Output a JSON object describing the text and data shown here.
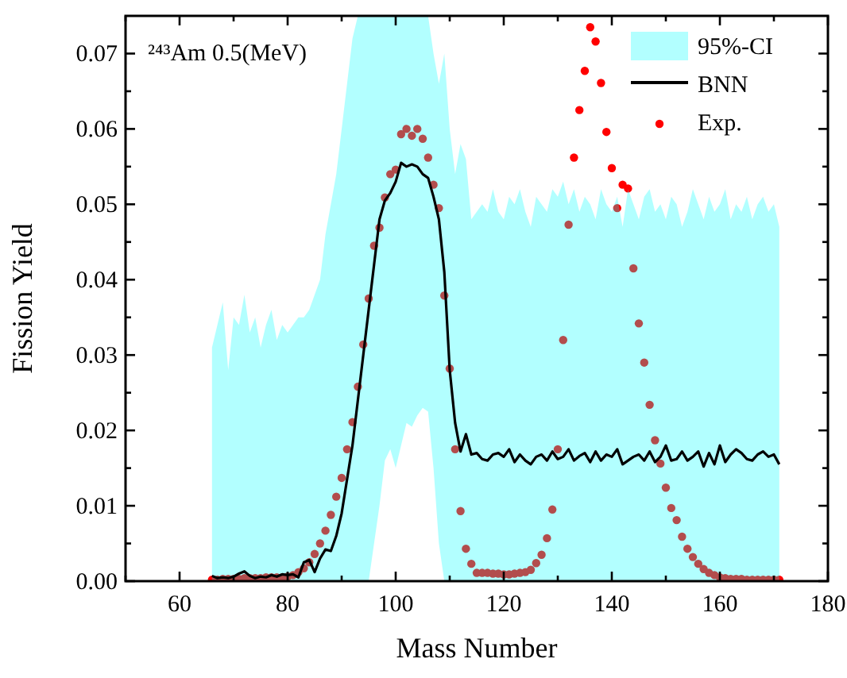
{
  "chart_data": {
    "type": "line",
    "title": "²⁴³Am 0.5(MeV)",
    "xlabel": "Mass Number",
    "ylabel": "Fission Yield",
    "annotations": [
      "95%-CI"
    ],
    "xlim": [
      50,
      180
    ],
    "xticks": [
      {
        "value": 50,
        "label": null
      },
      {
        "value": 60,
        "label": "60"
      },
      {
        "value": 70,
        "label": null
      },
      {
        "value": 80,
        "label": "80"
      },
      {
        "value": 90,
        "label": null
      },
      {
        "value": 100,
        "label": "100"
      },
      {
        "value": 110,
        "label": null
      },
      {
        "value": 120,
        "label": "120"
      },
      {
        "value": 130,
        "label": null
      },
      {
        "value": 140,
        "label": "140"
      },
      {
        "value": 150,
        "label": null
      },
      {
        "value": 160,
        "label": "160"
      },
      {
        "value": 170,
        "label": null
      },
      {
        "value": 180,
        "label": "180"
      }
    ],
    "ylim": [
      0,
      0.075
    ],
    "yticks": [
      {
        "value": 0,
        "label": "0.00"
      },
      {
        "value": 0.005,
        "label": null
      },
      {
        "value": 0.01,
        "label": "0.01"
      },
      {
        "value": 0.015,
        "label": null
      },
      {
        "value": 0.02,
        "label": "0.02"
      },
      {
        "value": 0.025,
        "label": null
      },
      {
        "value": 0.03,
        "label": "0.03"
      },
      {
        "value": 0.035,
        "label": null
      },
      {
        "value": 0.04,
        "label": "0.04"
      },
      {
        "value": 0.045,
        "label": null
      },
      {
        "value": 0.05,
        "label": "0.05"
      },
      {
        "value": 0.055,
        "label": null
      },
      {
        "value": 0.06,
        "label": "0.06"
      },
      {
        "value": 0.065,
        "label": null
      },
      {
        "value": 0.07,
        "label": "0.07"
      }
    ],
    "legend": "top right",
    "grid": false,
    "series": [
      {
        "name": "BNN",
        "color": "#000000",
        "marker": "none",
        "line_style": "solid",
        "x": [
          66,
          67,
          68,
          69,
          70,
          71,
          72,
          73,
          74,
          75,
          76,
          77,
          78,
          79,
          80,
          81,
          82,
          83,
          84,
          85,
          86,
          87,
          88,
          89,
          90,
          91,
          92,
          93,
          94,
          95,
          96,
          97,
          98,
          99,
          100,
          101,
          102,
          103,
          104,
          105,
          106,
          107,
          108,
          109,
          110,
          111,
          112,
          113,
          114,
          115,
          116,
          117,
          118,
          119,
          120,
          121,
          122,
          123,
          124,
          125,
          126,
          127,
          128,
          129,
          130,
          131,
          132,
          133,
          134,
          135,
          136,
          137,
          138,
          139,
          140,
          141,
          142,
          143,
          144,
          145,
          146,
          147,
          148,
          149,
          150,
          151,
          152,
          153,
          154,
          155,
          156,
          157,
          158,
          159,
          160,
          161,
          162,
          163,
          164,
          165,
          166,
          167,
          168,
          169,
          170,
          171
        ],
        "values": [
          0.0007,
          0.0004,
          0.0005,
          0.0004,
          0.0006,
          0.001,
          0.0013,
          0.0007,
          0.0004,
          0.0006,
          0.0005,
          0.0008,
          0.0006,
          0.0009,
          0.0008,
          0.0009,
          0.0005,
          0.0025,
          0.0028,
          0.0012,
          0.003,
          0.0042,
          0.004,
          0.006,
          0.009,
          0.0135,
          0.018,
          0.024,
          0.03,
          0.036,
          0.042,
          0.048,
          0.0505,
          0.0515,
          0.053,
          0.0555,
          0.055,
          0.0553,
          0.055,
          0.054,
          0.0535,
          0.051,
          0.048,
          0.041,
          0.028,
          0.021,
          0.0172,
          0.0195,
          0.0168,
          0.017,
          0.0162,
          0.016,
          0.0168,
          0.017,
          0.0165,
          0.0175,
          0.0158,
          0.0168,
          0.016,
          0.0155,
          0.0165,
          0.0168,
          0.016,
          0.0172,
          0.0162,
          0.0165,
          0.0175,
          0.016,
          0.0166,
          0.017,
          0.0158,
          0.0172,
          0.016,
          0.0168,
          0.0165,
          0.0175,
          0.0155,
          0.016,
          0.0165,
          0.0168,
          0.016,
          0.0172,
          0.0158,
          0.0165,
          0.018,
          0.016,
          0.0162,
          0.0172,
          0.016,
          0.0165,
          0.0172,
          0.0152,
          0.017,
          0.0155,
          0.018,
          0.0158,
          0.0168,
          0.0175,
          0.017,
          0.0162,
          0.016,
          0.0168,
          0.0172,
          0.0165,
          0.0168,
          0.0155
        ],
        "lower": [
          0,
          0,
          0,
          0,
          0,
          0,
          0,
          0,
          0,
          0,
          0,
          0,
          0,
          0,
          0,
          0,
          0,
          0,
          0,
          0,
          0,
          0,
          0,
          0,
          0,
          0,
          0,
          0,
          0,
          0,
          0.005,
          0.01,
          0.016,
          0.0175,
          0.015,
          0.018,
          0.021,
          0.0205,
          0.022,
          0.023,
          0.0225,
          0.015,
          0.005,
          0,
          0,
          0,
          0,
          0,
          0,
          0,
          0,
          0,
          0,
          0,
          0,
          0,
          0,
          0,
          0,
          0,
          0,
          0,
          0,
          0,
          0,
          0,
          0,
          0,
          0,
          0,
          0,
          0,
          0,
          0,
          0,
          0,
          0,
          0,
          0,
          0,
          0,
          0,
          0,
          0,
          0,
          0,
          0,
          0,
          0,
          0,
          0,
          0,
          0,
          0,
          0,
          0,
          0,
          0,
          0,
          0,
          0,
          0,
          0,
          0,
          0,
          0
        ],
        "upper": [
          0.031,
          0.034,
          0.037,
          0.028,
          0.035,
          0.034,
          0.038,
          0.033,
          0.035,
          0.031,
          0.034,
          0.036,
          0.032,
          0.034,
          0.033,
          0.034,
          0.035,
          0.035,
          0.036,
          0.038,
          0.04,
          0.046,
          0.05,
          0.054,
          0.06,
          0.066,
          0.072,
          0.075,
          0.075,
          0.075,
          0.075,
          0.075,
          0.075,
          0.075,
          0.075,
          0.075,
          0.075,
          0.075,
          0.075,
          0.075,
          0.075,
          0.07,
          0.066,
          0.07,
          0.06,
          0.054,
          0.058,
          0.056,
          0.048,
          0.049,
          0.05,
          0.049,
          0.052,
          0.049,
          0.048,
          0.051,
          0.05,
          0.052,
          0.049,
          0.047,
          0.051,
          0.05,
          0.049,
          0.052,
          0.051,
          0.053,
          0.05,
          0.052,
          0.049,
          0.051,
          0.05,
          0.048,
          0.052,
          0.05,
          0.049,
          0.051,
          0.047,
          0.052,
          0.05,
          0.048,
          0.051,
          0.052,
          0.049,
          0.05,
          0.048,
          0.051,
          0.05,
          0.047,
          0.049,
          0.052,
          0.05,
          0.048,
          0.051,
          0.049,
          0.05,
          0.052,
          0.048,
          0.05,
          0.049,
          0.051,
          0.048,
          0.05,
          0.051,
          0.049,
          0.05,
          0.047
        ]
      },
      {
        "name": "Exp.",
        "type": "scatter",
        "color": "#ff0000",
        "marker": "circle",
        "x": [
          66,
          67,
          68,
          69,
          70,
          71,
          72,
          73,
          74,
          75,
          76,
          77,
          78,
          79,
          80,
          81,
          82,
          83,
          84,
          85,
          86,
          87,
          88,
          89,
          90,
          91,
          92,
          93,
          94,
          95,
          96,
          97,
          98,
          99,
          100,
          101,
          102,
          103,
          104,
          105,
          106,
          107,
          108,
          109,
          110,
          111,
          112,
          113,
          114,
          115,
          116,
          117,
          118,
          119,
          120,
          121,
          122,
          123,
          124,
          125,
          126,
          127,
          128,
          129,
          130,
          131,
          132,
          133,
          134,
          135,
          136,
          137,
          138,
          139,
          140,
          141,
          142,
          143,
          144,
          145,
          146,
          147,
          148,
          149,
          150,
          151,
          152,
          153,
          154,
          155,
          156,
          157,
          158,
          159,
          160,
          161,
          162,
          163,
          164,
          165,
          166,
          167,
          168,
          169,
          170,
          171
        ],
        "values": [
          0.0002,
          0.0002,
          0.0003,
          0.0003,
          0.0003,
          0.0003,
          0.0004,
          0.0004,
          0.0004,
          0.0004,
          0.0005,
          0.0005,
          0.0005,
          0.0005,
          0.0006,
          0.0008,
          0.0012,
          0.0017,
          0.0025,
          0.0036,
          0.005,
          0.0067,
          0.0088,
          0.0112,
          0.0137,
          0.0175,
          0.0211,
          0.0258,
          0.0314,
          0.0375,
          0.0445,
          0.0469,
          0.0509,
          0.054,
          0.0546,
          0.0593,
          0.06,
          0.0591,
          0.06,
          0.0587,
          0.0562,
          0.0526,
          0.0495,
          0.0379,
          0.0282,
          0.0175,
          0.0093,
          0.0043,
          0.0023,
          0.0011,
          0.0011,
          0.0011,
          0.001,
          0.001,
          0.0009,
          0.0009,
          0.001,
          0.0011,
          0.0012,
          0.0015,
          0.0024,
          0.0035,
          0.0057,
          0.0095,
          0.0175,
          0.032,
          0.0473,
          0.0562,
          0.0625,
          0.0677,
          0.0735,
          0.0716,
          0.0661,
          0.0596,
          0.0548,
          0.0495,
          0.0526,
          0.0521,
          0.0415,
          0.0342,
          0.029,
          0.0234,
          0.0187,
          0.0156,
          0.0124,
          0.0097,
          0.0081,
          0.0059,
          0.0043,
          0.0032,
          0.0023,
          0.0016,
          0.0011,
          0.0008,
          0.0005,
          0.0004,
          0.0003,
          0.0003,
          0.0003,
          0.0002,
          0.0002,
          0.0002,
          0.0002,
          0.0002,
          0.0002,
          0.0002
        ]
      }
    ]
  }
}
